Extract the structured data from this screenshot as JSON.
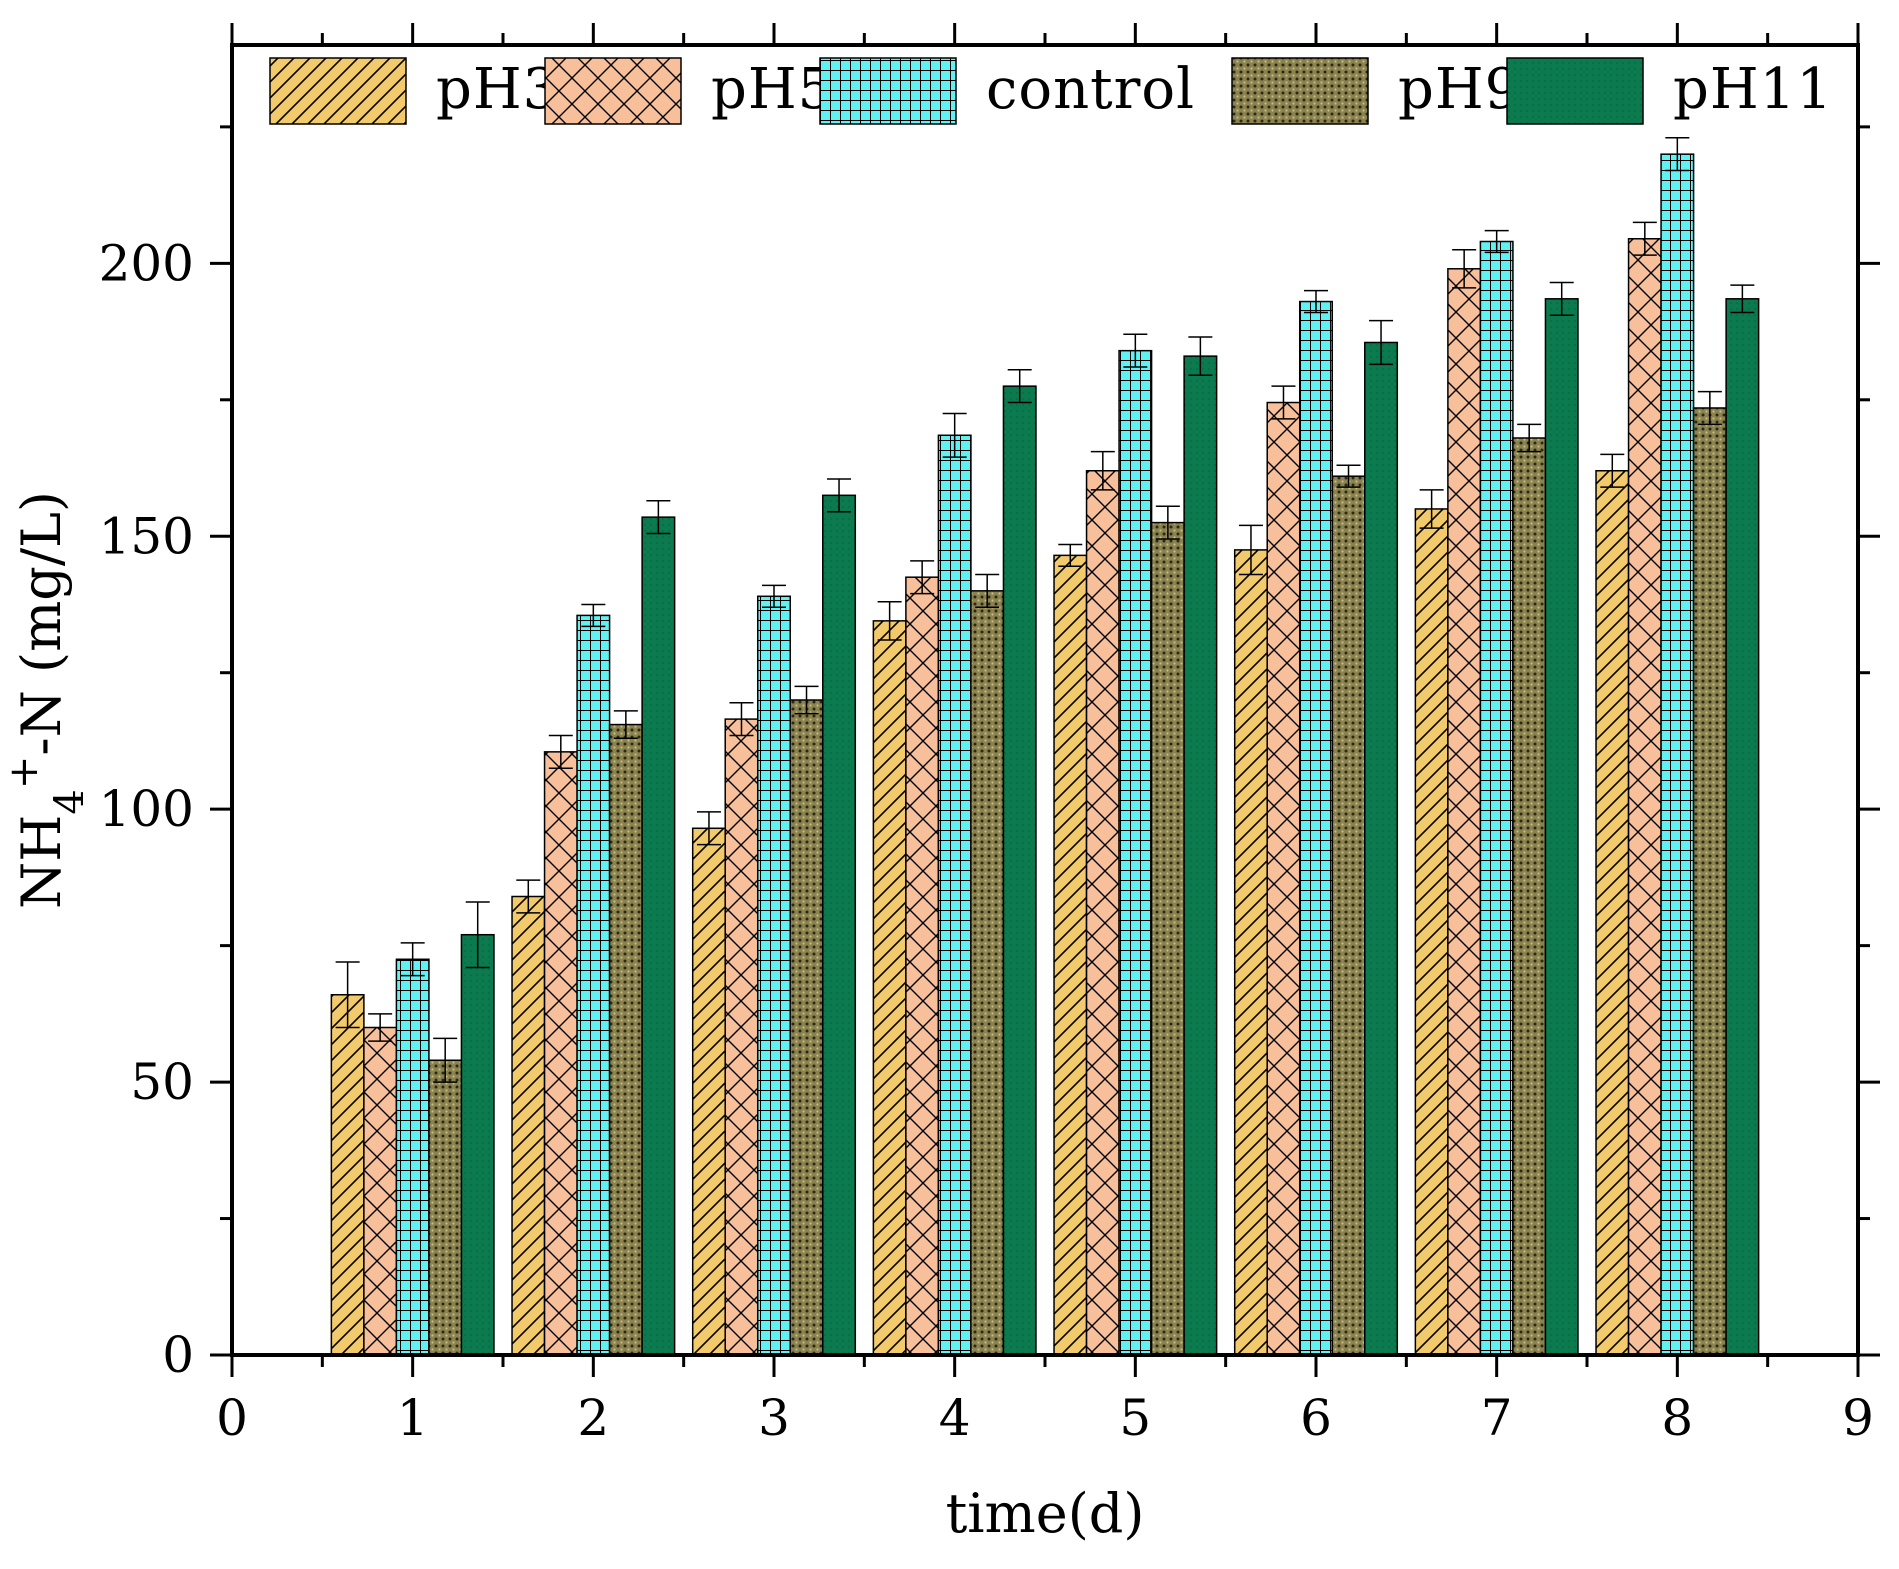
{
  "chart_data": {
    "type": "bar",
    "title": "",
    "xlabel": "time(d)",
    "ylabel": {
      "base": "NH",
      "sub": "4",
      "sup": "+",
      "rest": "-N  (mg/L)"
    },
    "xlim": [
      0,
      9
    ],
    "ylim": [
      0,
      240
    ],
    "xticks": [
      "0",
      "1",
      "2",
      "3",
      "4",
      "5",
      "6",
      "7",
      "8",
      "9"
    ],
    "yticks": [
      "0",
      "50",
      "100",
      "150",
      "200"
    ],
    "categories": [
      1,
      2,
      3,
      4,
      5,
      6,
      7,
      8
    ],
    "legend_position": "top",
    "series": [
      {
        "name": "pH3",
        "pattern": "diag",
        "color": "#f2c96b",
        "values": [
          66,
          84,
          96.5,
          134.5,
          146.5,
          147.5,
          155,
          162
        ],
        "errors": [
          6,
          3,
          3,
          3.5,
          2,
          4.5,
          3.5,
          3
        ]
      },
      {
        "name": "pH5",
        "pattern": "cross",
        "color": "#f8c09a",
        "values": [
          60,
          110.5,
          116.5,
          142.5,
          162,
          174.5,
          199,
          204.5
        ],
        "errors": [
          2.5,
          3,
          3,
          3,
          3.5,
          3,
          3.5,
          3
        ]
      },
      {
        "name": "control",
        "pattern": "grid",
        "color": "#5ff2f2",
        "values": [
          72.5,
          135.5,
          139,
          168.5,
          184,
          193,
          204,
          220
        ],
        "errors": [
          3,
          2,
          2,
          4,
          3,
          2,
          2,
          3
        ]
      },
      {
        "name": "pH9",
        "pattern": "dots",
        "color": "#6b6436",
        "values": [
          54,
          115.5,
          120,
          140,
          152.5,
          161,
          168,
          173.5
        ],
        "errors": [
          4,
          2.5,
          2.5,
          3,
          3,
          2,
          2.5,
          3
        ]
      },
      {
        "name": "pH11",
        "pattern": "solid",
        "color": "#0b7a4e",
        "values": [
          77,
          153.5,
          157.5,
          177.5,
          183,
          185.5,
          193.5,
          193.5
        ],
        "errors": [
          6,
          3,
          3,
          3,
          3.5,
          4,
          3,
          2.5
        ]
      }
    ]
  }
}
